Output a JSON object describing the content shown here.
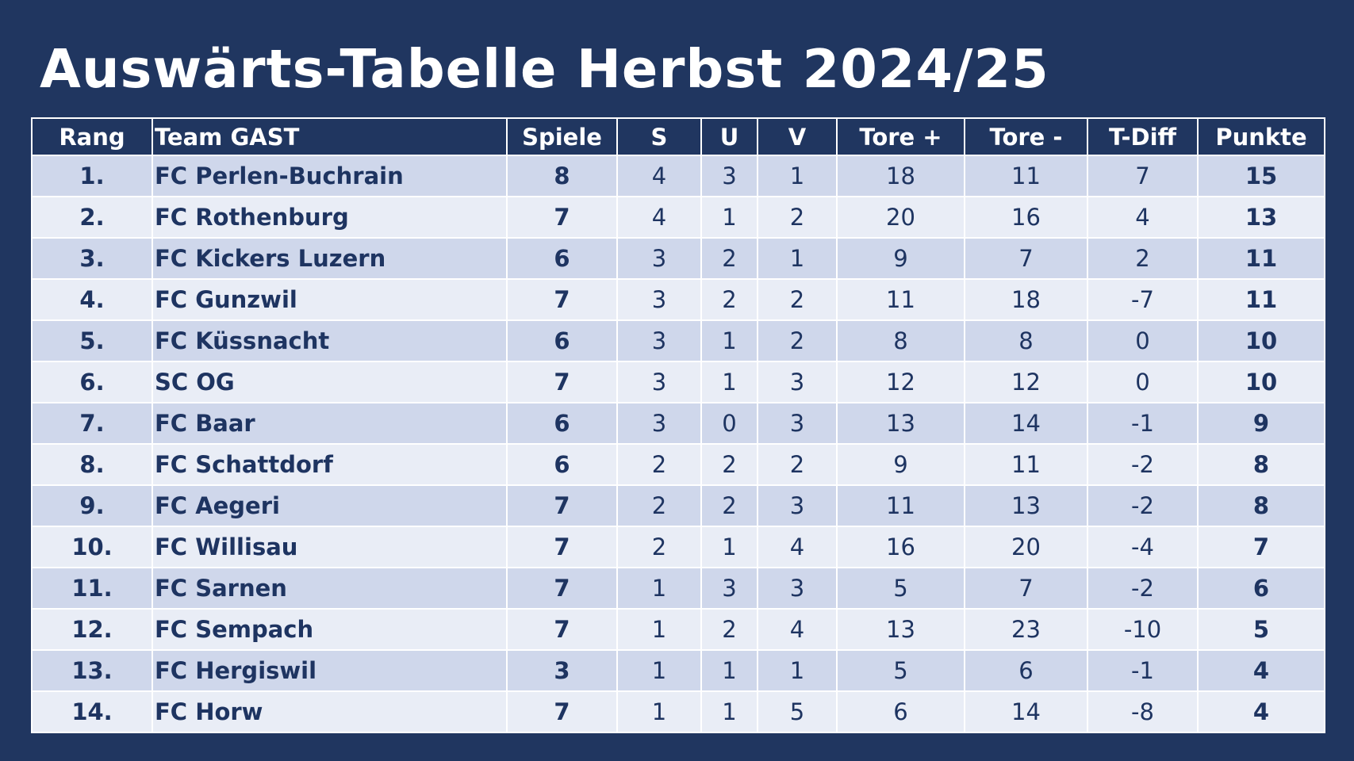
{
  "title": "Auswärts-Tabelle Herbst 2024/25",
  "colors": {
    "background": "#203660",
    "row_dark": "#cfd7eb",
    "row_light": "#e9edf6",
    "text": "#1e3461",
    "header_text": "#ffffff"
  },
  "columns": {
    "rank": "Rang",
    "team": "Team GAST",
    "games": "Spiele",
    "wins": "S",
    "draws": "U",
    "losses": "V",
    "goals_for": "Tore +",
    "goals_against": "Tore -",
    "goal_diff": "T-Diff",
    "points": "Punkte"
  },
  "rows": [
    {
      "rank": "1.",
      "team": "FC Perlen-Buchrain",
      "games": "8",
      "wins": "4",
      "draws": "3",
      "losses": "1",
      "goals_for": "18",
      "goals_against": "11",
      "goal_diff": "7",
      "points": "15"
    },
    {
      "rank": "2.",
      "team": "FC Rothenburg",
      "games": "7",
      "wins": "4",
      "draws": "1",
      "losses": "2",
      "goals_for": "20",
      "goals_against": "16",
      "goal_diff": "4",
      "points": "13"
    },
    {
      "rank": "3.",
      "team": "FC Kickers Luzern",
      "games": "6",
      "wins": "3",
      "draws": "2",
      "losses": "1",
      "goals_for": "9",
      "goals_against": "7",
      "goal_diff": "2",
      "points": "11"
    },
    {
      "rank": "4.",
      "team": "FC Gunzwil",
      "games": "7",
      "wins": "3",
      "draws": "2",
      "losses": "2",
      "goals_for": "11",
      "goals_against": "18",
      "goal_diff": "-7",
      "points": "11"
    },
    {
      "rank": "5.",
      "team": "FC Küssnacht",
      "games": "6",
      "wins": "3",
      "draws": "1",
      "losses": "2",
      "goals_for": "8",
      "goals_against": "8",
      "goal_diff": "0",
      "points": "10"
    },
    {
      "rank": "6.",
      "team": "SC OG",
      "games": "7",
      "wins": "3",
      "draws": "1",
      "losses": "3",
      "goals_for": "12",
      "goals_against": "12",
      "goal_diff": "0",
      "points": "10"
    },
    {
      "rank": "7.",
      "team": "FC Baar",
      "games": "6",
      "wins": "3",
      "draws": "0",
      "losses": "3",
      "goals_for": "13",
      "goals_against": "14",
      "goal_diff": "-1",
      "points": "9"
    },
    {
      "rank": "8.",
      "team": "FC Schattdorf",
      "games": "6",
      "wins": "2",
      "draws": "2",
      "losses": "2",
      "goals_for": "9",
      "goals_against": "11",
      "goal_diff": "-2",
      "points": "8"
    },
    {
      "rank": "9.",
      "team": "FC Aegeri",
      "games": "7",
      "wins": "2",
      "draws": "2",
      "losses": "3",
      "goals_for": "11",
      "goals_against": "13",
      "goal_diff": "-2",
      "points": "8"
    },
    {
      "rank": "10.",
      "team": "FC Willisau",
      "games": "7",
      "wins": "2",
      "draws": "1",
      "losses": "4",
      "goals_for": "16",
      "goals_against": "20",
      "goal_diff": "-4",
      "points": "7"
    },
    {
      "rank": "11.",
      "team": "FC Sarnen",
      "games": "7",
      "wins": "1",
      "draws": "3",
      "losses": "3",
      "goals_for": "5",
      "goals_against": "7",
      "goal_diff": "-2",
      "points": "6"
    },
    {
      "rank": "12.",
      "team": "FC Sempach",
      "games": "7",
      "wins": "1",
      "draws": "2",
      "losses": "4",
      "goals_for": "13",
      "goals_against": "23",
      "goal_diff": "-10",
      "points": "5"
    },
    {
      "rank": "13.",
      "team": "FC Hergiswil",
      "games": "3",
      "wins": "1",
      "draws": "1",
      "losses": "1",
      "goals_for": "5",
      "goals_against": "6",
      "goal_diff": "-1",
      "points": "4"
    },
    {
      "rank": "14.",
      "team": "FC Horw",
      "games": "7",
      "wins": "1",
      "draws": "1",
      "losses": "5",
      "goals_for": "6",
      "goals_against": "14",
      "goal_diff": "-8",
      "points": "4"
    }
  ]
}
